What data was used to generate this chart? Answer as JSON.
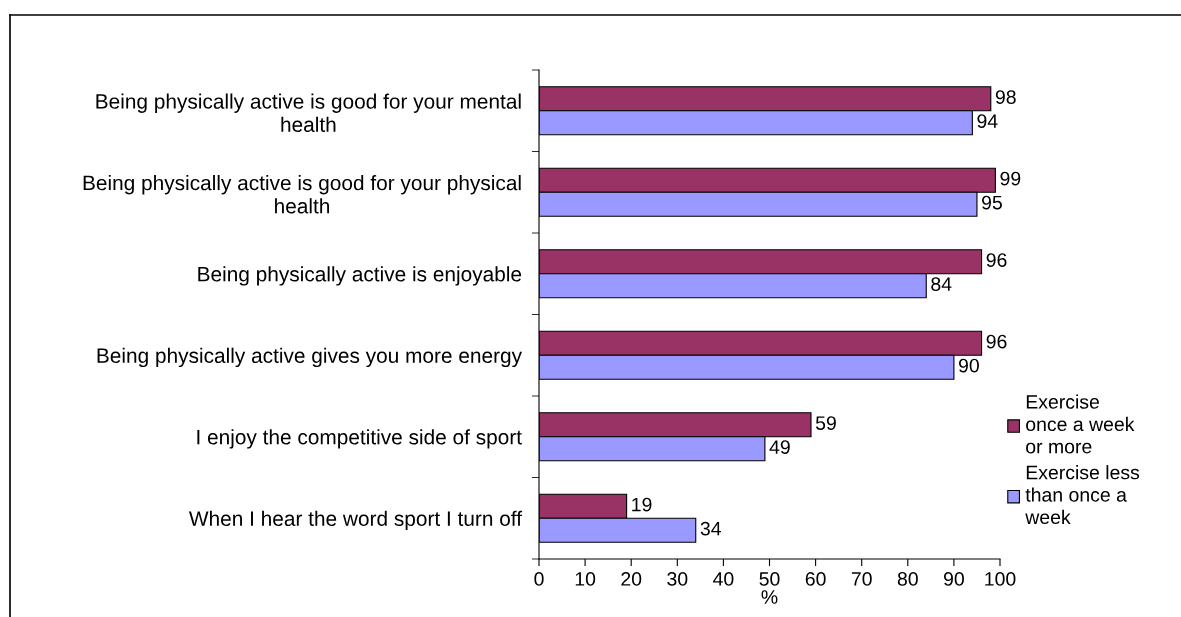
{
  "chart_data": {
    "type": "bar",
    "orientation": "horizontal",
    "categories": [
      "Being physically active is good for your mental health",
      "Being physically active is good for your physical health",
      "Being physically active is enjoyable",
      "Being physically active gives you more energy",
      "I enjoy the competitive side of sport",
      "When I hear the word sport I turn off"
    ],
    "series": [
      {
        "name": "Exercise once a week or more",
        "color": "#993366",
        "values": [
          98,
          99,
          96,
          96,
          59,
          19
        ]
      },
      {
        "name": "Exercise less than once a week",
        "color": "#9999ff",
        "values": [
          94,
          95,
          84,
          90,
          49,
          34
        ]
      }
    ],
    "xlabel": "%",
    "xlim": [
      0,
      100
    ],
    "xticks": [
      0,
      10,
      20,
      30,
      40,
      50,
      60,
      70,
      80,
      90,
      100
    ],
    "data_labels": true,
    "legend": "right"
  }
}
